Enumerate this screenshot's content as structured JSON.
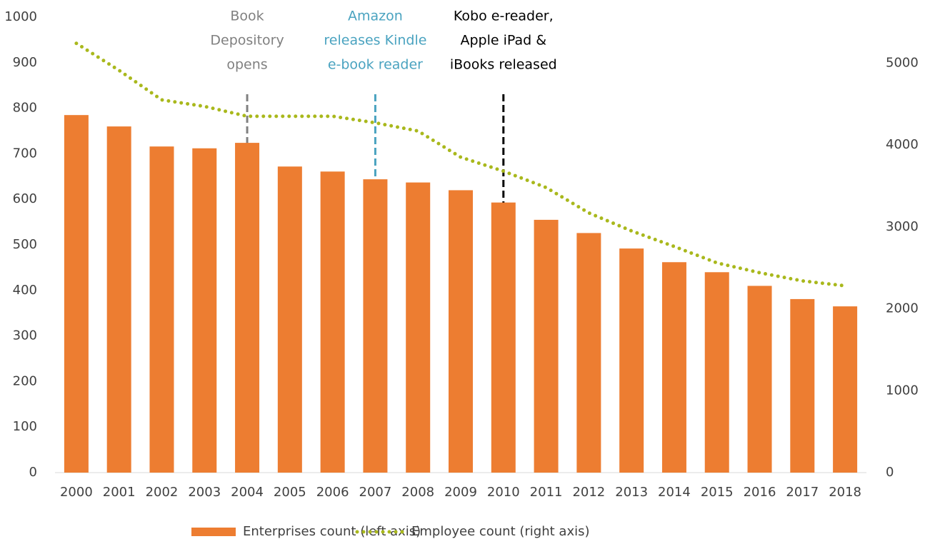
{
  "chart_data": {
    "type": "bar_line",
    "categories": [
      "2000",
      "2001",
      "2002",
      "2003",
      "2004",
      "2005",
      "2006",
      "2007",
      "2008",
      "2009",
      "2010",
      "2011",
      "2012",
      "2013",
      "2014",
      "2015",
      "2016",
      "2017",
      "2018"
    ],
    "series": [
      {
        "name": "Enterprises count (left axis)",
        "type": "bar",
        "color": "#ed7d31",
        "values": [
          785,
          760,
          716,
          712,
          724,
          672,
          661,
          644,
          637,
          620,
          593,
          555,
          526,
          492,
          462,
          440,
          410,
          381,
          365
        ]
      },
      {
        "name": "Employee count (right axis)",
        "type": "line",
        "axis": "y2",
        "color": "#a9b81c",
        "values": [
          5240,
          4910,
          4550,
          4470,
          4350,
          4350,
          4350,
          4270,
          4170,
          3850,
          3680,
          3480,
          3170,
          2950,
          2760,
          2560,
          2440,
          2340,
          2280
        ]
      }
    ],
    "ylim": [
      0,
      1000
    ],
    "yticks": [
      0,
      100,
      200,
      300,
      400,
      500,
      600,
      700,
      800,
      900,
      1000
    ],
    "y2lim": [
      0,
      5560
    ],
    "y2ticks": [
      0,
      1000,
      2000,
      3000,
      4000,
      5000
    ],
    "annotations": [
      {
        "x": "2004",
        "lines": [
          "Book",
          "Depository",
          "opens"
        ],
        "color": "#808080"
      },
      {
        "x": "2007",
        "lines": [
          "Amazon",
          "releases Kindle",
          "e-book reader"
        ],
        "color": "#4aa3c0"
      },
      {
        "x": "2010",
        "lines": [
          "Kobo e-reader,",
          "Apple iPad &",
          "iBooks released"
        ],
        "color": "#000000"
      }
    ],
    "legend": "bottom"
  }
}
